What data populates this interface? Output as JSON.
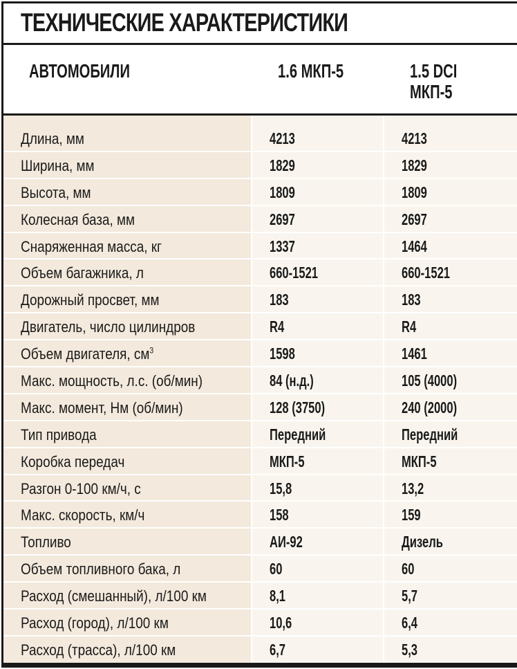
{
  "title": "ТЕХНИЧЕСКИЕ ХАРАКТЕРИСТИКИ",
  "header": {
    "label": "АВТОМОБИЛИ",
    "col1": "1.6 МКП-5",
    "col2_line1": "1.5 DCI",
    "col2_line2": "МКП-5"
  },
  "colors": {
    "label_column_bg": "#f3e9dc",
    "value_columns_bg": "#f9f5ee",
    "rule": "#1a1a1a"
  },
  "rows": [
    {
      "label": "Длина, мм",
      "v1": "4213",
      "v2": "4213"
    },
    {
      "label": "Ширина, мм",
      "v1": "1829",
      "v2": "1829"
    },
    {
      "label": "Высота, мм",
      "v1": "1809",
      "v2": "1809"
    },
    {
      "label": "Колесная база, мм",
      "v1": "2697",
      "v2": "2697"
    },
    {
      "label": "Снаряженная масса, кг",
      "v1": "1337",
      "v2": "1464"
    },
    {
      "label": "Объем багажника, л",
      "v1": "660-1521",
      "v2": "660-1521"
    },
    {
      "label": "Дорожный просвет, мм",
      "v1": "183",
      "v2": "183"
    },
    {
      "label": "Двигатель, число цилиндров",
      "v1": "R4",
      "v2": "R4"
    },
    {
      "label": "Объем двигателя, см",
      "sup": "3",
      "v1": "1598",
      "v2": "1461"
    },
    {
      "label": "Макс. мощность, л.с. (об/мин)",
      "v1": "84 (н.д.)",
      "v2": "105 (4000)"
    },
    {
      "label": "Макс. момент, Нм (об/мин)",
      "v1": "128 (3750)",
      "v2": "240 (2000)"
    },
    {
      "label": "Тип привода",
      "v1": "Передний",
      "v2": "Передний"
    },
    {
      "label": "Коробка передач",
      "v1": "МКП-5",
      "v2": "МКП-5"
    },
    {
      "label": "Разгон 0-100 км/ч, с",
      "v1": "15,8",
      "v2": "13,2"
    },
    {
      "label": "Макс. скорость, км/ч",
      "v1": "158",
      "v2": "159"
    },
    {
      "label": "Топливо",
      "v1": "АИ-92",
      "v2": "Дизель"
    },
    {
      "label": "Объем топливного бака, л",
      "v1": "60",
      "v2": "60"
    },
    {
      "label": "Расход (смешанный), л/100 км",
      "v1": "8,1",
      "v2": "5,7"
    },
    {
      "label": "Расход (город), л/100 км",
      "v1": "10,6",
      "v2": "6,4"
    },
    {
      "label": "Расход (трасса), л/100 км",
      "v1": "6,7",
      "v2": "5,3"
    }
  ]
}
